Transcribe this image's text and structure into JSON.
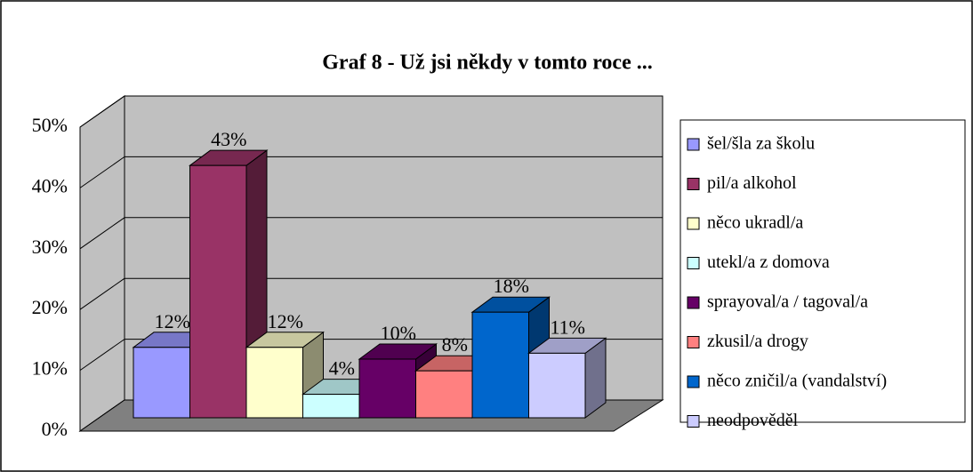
{
  "chart_data": {
    "type": "bar3d",
    "title": "Graf 8 - Už jsi někdy v tomto roce ...",
    "series": [
      {
        "name": "šel/šla za školu",
        "color": "#9999ff",
        "values": [
          12
        ],
        "value_labels": [
          "12%"
        ]
      },
      {
        "name": "pil/a alkohol",
        "color": "#993366",
        "values": [
          43
        ],
        "value_labels": [
          "43%"
        ]
      },
      {
        "name": "něco ukradl/a",
        "color": "#ffffcc",
        "values": [
          12
        ],
        "value_labels": [
          "12%"
        ]
      },
      {
        "name": "utekl/a z domova",
        "color": "#ccffff",
        "values": [
          4
        ],
        "value_labels": [
          "4%"
        ]
      },
      {
        "name": "sprayoval/a / tagoval/a",
        "color": "#660066",
        "values": [
          10
        ],
        "value_labels": [
          "10%"
        ]
      },
      {
        "name": "zkusil/a drogy",
        "color": "#ff8080",
        "values": [
          8
        ],
        "value_labels": [
          "8%"
        ]
      },
      {
        "name": "něco zničil/a (vandalství)",
        "color": "#0066cc",
        "values": [
          18
        ],
        "value_labels": [
          "18%"
        ]
      },
      {
        "name": "neodpověděl",
        "color": "#ccccff",
        "values": [
          11
        ],
        "value_labels": [
          "11%"
        ]
      }
    ],
    "ylim": [
      0,
      50
    ],
    "yticks": [
      {
        "value": 0,
        "label": "0%"
      },
      {
        "value": 10,
        "label": "10%"
      },
      {
        "value": 20,
        "label": "20%"
      },
      {
        "value": 30,
        "label": "30%"
      },
      {
        "value": 40,
        "label": "40%"
      },
      {
        "value": 50,
        "label": "50%"
      }
    ],
    "grid": true,
    "legend": "right"
  }
}
